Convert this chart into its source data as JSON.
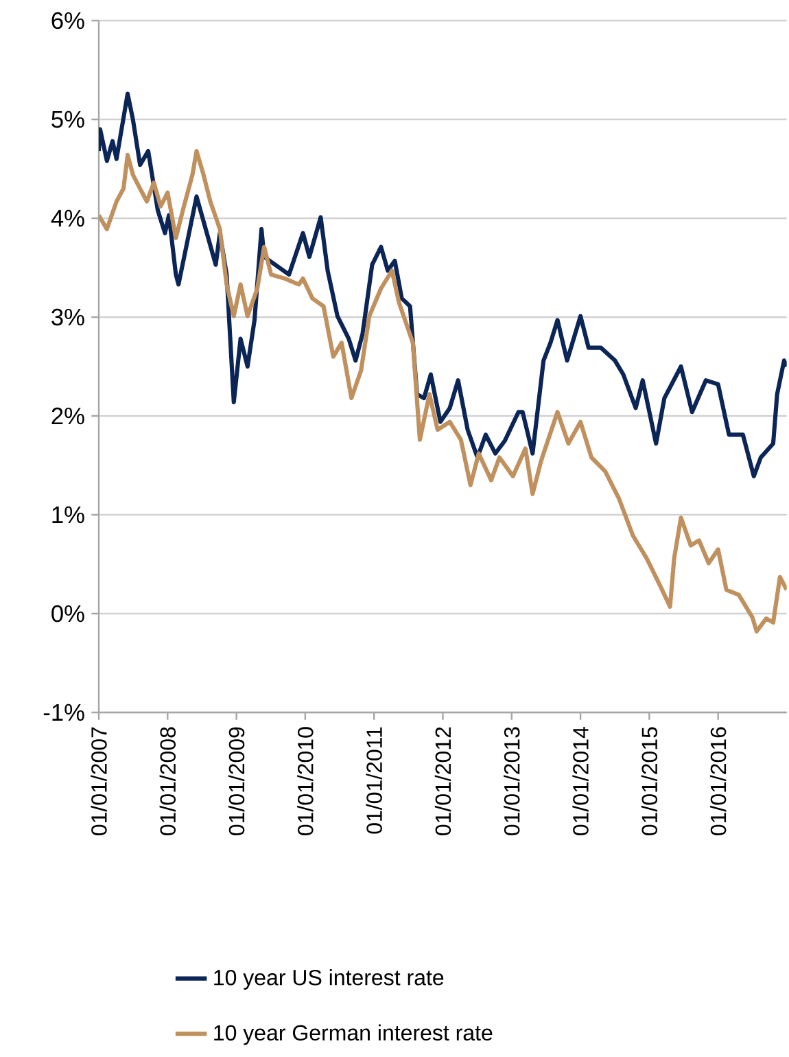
{
  "chart_data": {
    "type": "line",
    "legend": "bottom",
    "grid": "y",
    "line_style": "solid",
    "marker": "none",
    "xlim": [
      "2007-01-01",
      "2016-12-31"
    ],
    "ylim": [
      -1,
      6
    ],
    "yticks": [
      {
        "value": -1,
        "label": "-1%"
      },
      {
        "value": 0,
        "label": "0%"
      },
      {
        "value": 1,
        "label": "1%"
      },
      {
        "value": 2,
        "label": "2%"
      },
      {
        "value": 3,
        "label": "3%"
      },
      {
        "value": 4,
        "label": "4%"
      },
      {
        "value": 5,
        "label": "5%"
      },
      {
        "value": 6,
        "label": "6%"
      }
    ],
    "xticks": [
      {
        "value": "2007-01-01",
        "label": "01/01/2007"
      },
      {
        "value": "2008-01-01",
        "label": "01/01/2008"
      },
      {
        "value": "2009-01-01",
        "label": "01/01/2009"
      },
      {
        "value": "2010-01-01",
        "label": "01/01/2010"
      },
      {
        "value": "2011-01-01",
        "label": "01/01/2011"
      },
      {
        "value": "2012-01-01",
        "label": "01/01/2012"
      },
      {
        "value": "2013-01-01",
        "label": "01/01/2013"
      },
      {
        "value": "2014-01-01",
        "label": "01/01/2014"
      },
      {
        "value": "2015-01-01",
        "label": "01/01/2015"
      },
      {
        "value": "2016-01-01",
        "label": "01/01/2016"
      }
    ],
    "series": [
      {
        "name": "10 year US interest rate",
        "color": "#0b2557",
        "x": [
          "2007-01-01",
          "2007-01-08",
          "2007-02-13",
          "2007-03-15",
          "2007-04-05",
          "2007-06-03",
          "2007-07-01",
          "2007-08-08",
          "2007-09-20",
          "2007-11-10",
          "2007-12-18",
          "2008-01-08",
          "2008-02-14",
          "2008-02-28",
          "2008-06-03",
          "2008-09-13",
          "2008-10-05",
          "2008-11-10",
          "2008-12-18",
          "2009-01-23",
          "2009-03-01",
          "2009-04-07",
          "2009-05-14",
          "2009-05-28",
          "2009-07-26",
          "2009-10-07",
          "2009-12-20",
          "2010-01-23",
          "2010-03-24",
          "2010-04-30",
          "2010-06-21",
          "2010-08-20",
          "2010-09-25",
          "2010-11-01",
          "2010-12-22",
          "2011-02-07",
          "2011-03-15",
          "2011-04-21",
          "2011-05-28",
          "2011-07-11",
          "2011-08-17",
          "2011-09-23",
          "2011-10-29",
          "2011-12-19",
          "2012-02-07",
          "2012-03-22",
          "2012-05-12",
          "2012-07-03",
          "2012-08-16",
          "2012-10-06",
          "2012-11-26",
          "2013-02-06",
          "2013-02-28",
          "2013-04-22",
          "2013-06-19",
          "2013-07-26",
          "2013-09-01",
          "2013-10-22",
          "2014-01-01",
          "2014-02-13",
          "2014-04-20",
          "2014-07-03",
          "2014-08-16",
          "2014-10-21",
          "2014-11-27",
          "2015-02-06",
          "2015-03-22",
          "2015-06-18",
          "2015-08-16",
          "2015-10-28",
          "2016-01-01",
          "2016-02-28",
          "2016-05-12",
          "2016-07-09",
          "2016-08-15",
          "2016-10-20",
          "2016-11-10",
          "2016-12-17",
          "2016-12-31"
        ],
        "values": [
          4.68,
          4.9,
          4.58,
          4.78,
          4.6,
          5.26,
          5.0,
          4.54,
          4.68,
          4.08,
          3.85,
          4.03,
          3.43,
          3.33,
          4.22,
          3.53,
          3.85,
          3.43,
          2.14,
          2.78,
          2.5,
          2.97,
          3.89,
          3.61,
          3.53,
          3.43,
          3.85,
          3.61,
          4.01,
          3.47,
          3.01,
          2.78,
          2.56,
          2.83,
          3.53,
          3.71,
          3.47,
          3.57,
          3.19,
          3.11,
          2.22,
          2.18,
          2.42,
          1.94,
          2.08,
          2.36,
          1.86,
          1.58,
          1.81,
          1.62,
          1.75,
          2.04,
          2.04,
          1.62,
          2.56,
          2.74,
          2.97,
          2.56,
          3.01,
          2.69,
          2.69,
          2.56,
          2.42,
          2.08,
          2.36,
          1.72,
          2.18,
          2.5,
          2.04,
          2.36,
          2.32,
          1.81,
          1.81,
          1.39,
          1.58,
          1.72,
          2.22,
          2.56,
          2.5
        ]
      },
      {
        "name": "10 year German interest rate",
        "color": "#c0915f",
        "x": [
          "2007-01-01",
          "2007-02-13",
          "2007-04-05",
          "2007-05-12",
          "2007-06-03",
          "2007-07-01",
          "2007-08-08",
          "2007-09-13",
          "2007-10-20",
          "2007-11-25",
          "2008-01-01",
          "2008-02-14",
          "2008-03-22",
          "2008-05-12",
          "2008-06-03",
          "2008-07-10",
          "2008-08-15",
          "2008-10-05",
          "2008-11-10",
          "2008-12-18",
          "2009-01-23",
          "2009-03-01",
          "2009-04-22",
          "2009-05-28",
          "2009-07-04",
          "2009-09-15",
          "2009-11-28",
          "2009-12-20",
          "2010-02-08",
          "2010-04-08",
          "2010-05-30",
          "2010-07-13",
          "2010-09-03",
          "2010-10-24",
          "2010-12-07",
          "2011-02-07",
          "2011-04-06",
          "2011-05-13",
          "2011-07-26",
          "2011-09-01",
          "2011-10-22",
          "2011-12-04",
          "2012-02-07",
          "2012-04-06",
          "2012-05-27",
          "2012-07-10",
          "2012-09-14",
          "2012-10-28",
          "2013-01-08",
          "2013-03-15",
          "2013-04-22",
          "2013-06-04",
          "2013-06-19",
          "2013-09-01",
          "2013-10-29",
          "2014-01-01",
          "2014-02-28",
          "2014-05-12",
          "2014-07-25",
          "2014-10-06",
          "2014-12-18",
          "2015-02-28",
          "2015-04-21",
          "2015-05-13",
          "2015-06-18",
          "2015-08-09",
          "2015-09-22",
          "2015-11-12",
          "2016-01-01",
          "2016-02-14",
          "2016-04-20",
          "2016-07-02",
          "2016-07-24",
          "2016-09-13",
          "2016-10-20",
          "2016-11-25",
          "2016-12-31"
        ],
        "values": [
          4.03,
          3.89,
          4.17,
          4.3,
          4.64,
          4.44,
          4.3,
          4.17,
          4.36,
          4.12,
          4.26,
          3.8,
          4.08,
          4.44,
          4.68,
          4.44,
          4.17,
          3.89,
          3.33,
          3.01,
          3.33,
          3.01,
          3.29,
          3.71,
          3.43,
          3.39,
          3.33,
          3.39,
          3.19,
          3.11,
          2.6,
          2.74,
          2.18,
          2.46,
          3.01,
          3.29,
          3.47,
          3.15,
          2.74,
          1.76,
          2.22,
          1.86,
          1.94,
          1.76,
          1.3,
          1.62,
          1.35,
          1.58,
          1.39,
          1.67,
          1.21,
          1.53,
          1.62,
          2.04,
          1.72,
          1.94,
          1.58,
          1.44,
          1.16,
          0.79,
          0.56,
          0.28,
          0.07,
          0.56,
          0.97,
          0.69,
          0.74,
          0.51,
          0.65,
          0.24,
          0.19,
          -0.04,
          -0.18,
          -0.05,
          -0.09,
          0.37,
          0.24
        ]
      }
    ]
  }
}
